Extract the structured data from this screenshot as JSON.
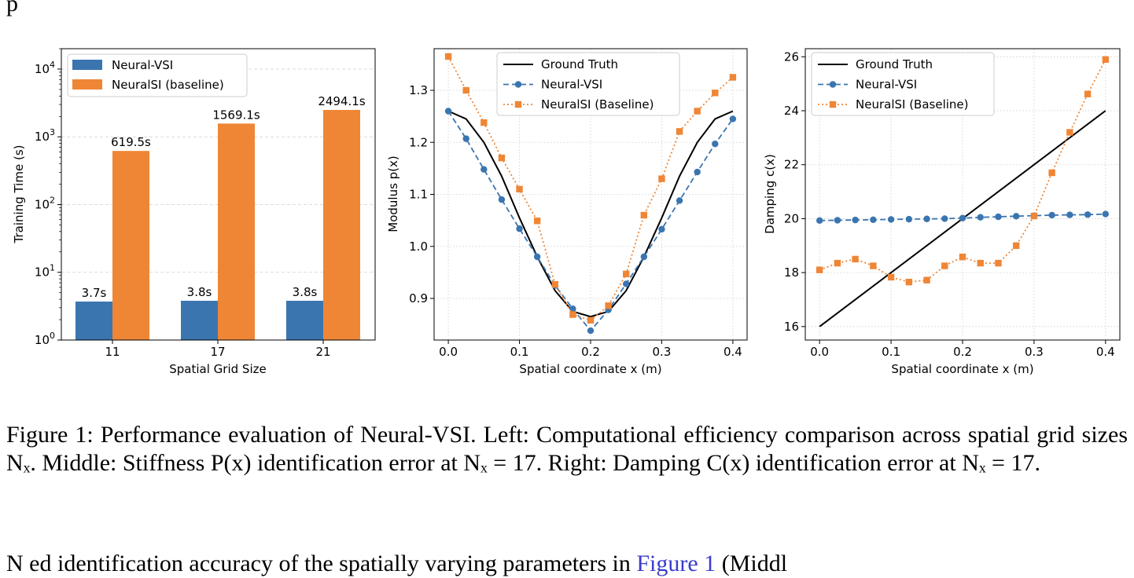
{
  "page": {
    "top_partial": "p",
    "caption": {
      "label": "Figure 1:",
      "text": "Performance evaluation of Neural-VSI. Left: Computational efficiency comparison across spatial grid sizes Nₓ. Middle: Stiffness P(x) identification error at Nₓ = 17. Right: Damping C(x) identification error at Nₓ = 17."
    },
    "trailing_text": {
      "before": "N",
      "middle": "                 ed identification accuracy of the spatially varying parameters in ",
      "link": "Figure 1",
      "after": " (Middl"
    }
  },
  "colors": {
    "blue": "#3a75b0",
    "orange": "#ef8636",
    "black": "#000000"
  },
  "chart_data": [
    {
      "type": "bar",
      "title": "",
      "xlabel": "Spatial Grid Size",
      "ylabel": "Training Time (s)",
      "yscale": "log",
      "ylim": [
        1,
        20000
      ],
      "yticks": [
        "10^0",
        "10^1",
        "10^2",
        "10^3",
        "10^4"
      ],
      "categories": [
        "11",
        "17",
        "21"
      ],
      "grid": "horizontal dashed",
      "legend": "top-left",
      "series": [
        {
          "name": "Neural-VSI",
          "color": "#3a75b0",
          "values": [
            3.7,
            3.8,
            3.8
          ],
          "labels": [
            "3.7s",
            "3.8s",
            "3.8s"
          ]
        },
        {
          "name": "NeuralSI (baseline)",
          "color": "#ef8636",
          "values": [
            619.5,
            1569.1,
            2494.1
          ],
          "labels": [
            "619.5s",
            "1569.1s",
            "2494.1s"
          ]
        }
      ]
    },
    {
      "type": "line",
      "title": "",
      "xlabel": "Spatial coordinate x (m)",
      "ylabel": "Modulus p(x)",
      "xlim": [
        -0.02,
        0.42
      ],
      "ylim": [
        0.82,
        1.38
      ],
      "xticks": [
        "0.0",
        "0.1",
        "0.2",
        "0.3",
        "0.4"
      ],
      "yticks": [
        "0.9",
        "1.0",
        "1.1",
        "1.2",
        "1.3"
      ],
      "grid": "dotted",
      "legend": "top-center",
      "x": [
        0.0,
        0.025,
        0.05,
        0.075,
        0.1,
        0.125,
        0.15,
        0.175,
        0.2,
        0.225,
        0.25,
        0.275,
        0.3,
        0.325,
        0.35,
        0.375,
        0.4
      ],
      "series": [
        {
          "name": "Ground Truth",
          "style": "solid",
          "color": "#000000",
          "values": [
            1.26,
            1.245,
            1.2,
            1.135,
            1.055,
            0.98,
            0.915,
            0.875,
            0.865,
            0.875,
            0.915,
            0.98,
            1.055,
            1.135,
            1.2,
            1.245,
            1.26
          ]
        },
        {
          "name": "Neural-VSI",
          "style": "dashed",
          "marker": "circle",
          "color": "#3a75b0",
          "values": [
            1.26,
            1.207,
            1.148,
            1.09,
            1.034,
            0.98,
            0.925,
            0.88,
            0.838,
            0.878,
            0.928,
            0.98,
            1.033,
            1.088,
            1.143,
            1.197,
            1.245
          ]
        },
        {
          "name": "NeuralSI (Baseline)",
          "style": "dotted",
          "marker": "square",
          "color": "#ef8636",
          "values": [
            1.365,
            1.3,
            1.238,
            1.17,
            1.11,
            1.049,
            0.927,
            0.869,
            0.858,
            0.886,
            0.947,
            1.06,
            1.13,
            1.221,
            1.26,
            1.295,
            1.325
          ]
        }
      ]
    },
    {
      "type": "line",
      "title": "",
      "xlabel": "Spatial coordinate x (m)",
      "ylabel": "Damping c(x)",
      "xlim": [
        -0.02,
        0.42
      ],
      "ylim": [
        15.5,
        26.3
      ],
      "xticks": [
        "0.0",
        "0.1",
        "0.2",
        "0.3",
        "0.4"
      ],
      "yticks": [
        "16",
        "18",
        "20",
        "22",
        "24",
        "26"
      ],
      "grid": "dotted",
      "legend": "top-left",
      "x": [
        0.0,
        0.025,
        0.05,
        0.075,
        0.1,
        0.125,
        0.15,
        0.175,
        0.2,
        0.225,
        0.25,
        0.275,
        0.3,
        0.325,
        0.35,
        0.375,
        0.4
      ],
      "series": [
        {
          "name": "Ground Truth",
          "style": "solid",
          "color": "#000000",
          "x": [
            0.0,
            0.4
          ],
          "values": [
            16.0,
            24.0
          ]
        },
        {
          "name": "Neural-VSI",
          "style": "dashed",
          "marker": "circle",
          "color": "#3a75b0",
          "values": [
            19.93,
            19.94,
            19.95,
            19.96,
            19.97,
            19.98,
            19.99,
            20.0,
            20.02,
            20.05,
            20.07,
            20.09,
            20.11,
            20.13,
            20.14,
            20.15,
            20.17
          ]
        },
        {
          "name": "NeuralSI (Baseline)",
          "style": "dotted",
          "marker": "square",
          "color": "#ef8636",
          "values": [
            18.1,
            18.35,
            18.5,
            18.25,
            17.83,
            17.65,
            17.72,
            18.25,
            18.58,
            18.35,
            18.35,
            19.0,
            20.1,
            21.7,
            23.2,
            24.62,
            25.9
          ]
        }
      ]
    }
  ]
}
